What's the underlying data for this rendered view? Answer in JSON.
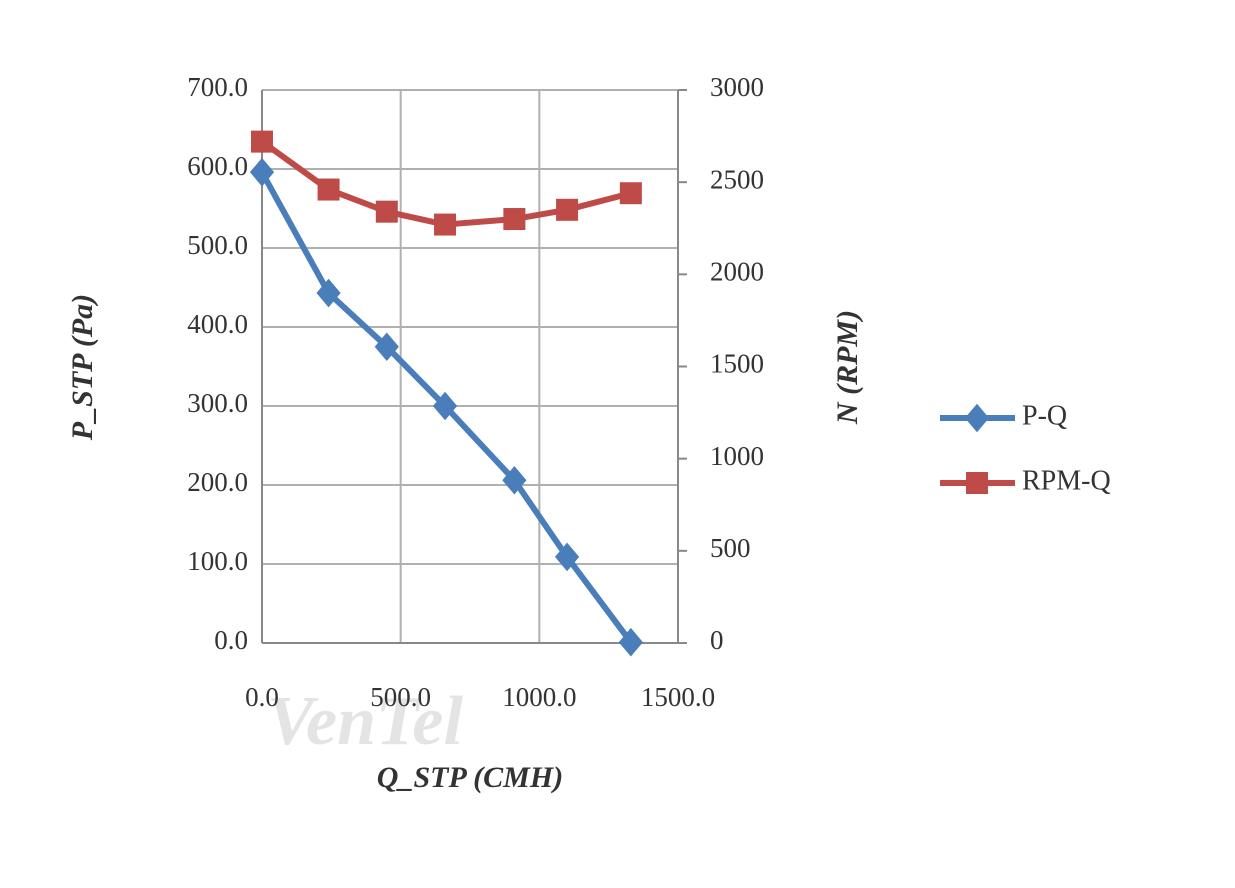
{
  "chart_data": {
    "type": "line",
    "x": [
      0,
      240,
      450,
      660,
      910,
      1100,
      1330
    ],
    "xlim": [
      0,
      1500
    ],
    "xticks": [
      {
        "value": 0,
        "label": "0.0"
      },
      {
        "value": 500,
        "label": "500.0"
      },
      {
        "value": 1000,
        "label": "1000.0"
      },
      {
        "value": 1500,
        "label": "1500.0"
      }
    ],
    "ylim": [
      0,
      700
    ],
    "yticks": [
      {
        "value": 0,
        "label": "0.0"
      },
      {
        "value": 100,
        "label": "100.0"
      },
      {
        "value": 200,
        "label": "200.0"
      },
      {
        "value": 300,
        "label": "300.0"
      },
      {
        "value": 400,
        "label": "400.0"
      },
      {
        "value": 500,
        "label": "500.0"
      },
      {
        "value": 600,
        "label": "600.0"
      },
      {
        "value": 700,
        "label": "700.0"
      }
    ],
    "y2lim": [
      0,
      3000
    ],
    "y2ticks": [
      0,
      500,
      1000,
      1500,
      2000,
      2500,
      3000
    ],
    "x_label": "Q_STP (CMH)",
    "y_label": "P_STP (Pa)",
    "y2_label": "N (RPM)",
    "grid": true,
    "legend": "right",
    "watermark": "VenTel",
    "series": [
      {
        "name": "P-Q",
        "color": "#4a7ebb",
        "marker": "diamond",
        "values": [
          596,
          443,
          375,
          300,
          206,
          109,
          1
        ]
      },
      {
        "name": "RPM-Q",
        "color": "#be4b48",
        "marker": "square",
        "axis": "y2",
        "values": [
          2720,
          2460,
          2340,
          2270,
          2300,
          2350,
          2440
        ]
      }
    ]
  }
}
